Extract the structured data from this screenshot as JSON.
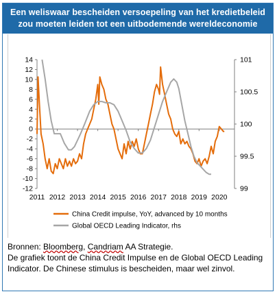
{
  "header": {
    "line1": "Een weliswaar bescheiden  versoepeling  van het kredietbeleid",
    "line2": "zou moeten leiden tot een uitbodemende  wereldeconomie"
  },
  "chart_data": {
    "type": "line",
    "x_ticks": [
      "2011",
      "2012",
      "2013",
      "2014",
      "2015",
      "2016",
      "2017",
      "2018",
      "2019",
      "2020"
    ],
    "y_left_ticks": [
      "14",
      "12",
      "10",
      "8",
      "6",
      "4",
      "2",
      "0",
      "-2",
      "-4",
      "-6",
      "-8",
      "-10",
      "-12"
    ],
    "y_right_ticks": [
      "101",
      "100.5",
      "100",
      "99.5",
      "99"
    ],
    "ylim_left": [
      -12,
      14
    ],
    "ylim_right": [
      99,
      101
    ],
    "xlim": [
      2011,
      2020.75
    ],
    "legend_position": "bottom",
    "series": [
      {
        "name": "China Credit impulse, YoY, advanced by 10 months",
        "axis": "left",
        "color": "#e46c0a",
        "points": [
          [
            2011.0,
            -1
          ],
          [
            2011.05,
            10.5
          ],
          [
            2011.12,
            5
          ],
          [
            2011.2,
            -1
          ],
          [
            2011.3,
            -3
          ],
          [
            2011.4,
            -6
          ],
          [
            2011.5,
            -8
          ],
          [
            2011.6,
            -6
          ],
          [
            2011.7,
            -8.5
          ],
          [
            2011.8,
            -9
          ],
          [
            2011.9,
            -7
          ],
          [
            2012.0,
            -8
          ],
          [
            2012.1,
            -6
          ],
          [
            2012.2,
            -7
          ],
          [
            2012.3,
            -8
          ],
          [
            2012.4,
            -6
          ],
          [
            2012.5,
            -7.5
          ],
          [
            2012.6,
            -6.5
          ],
          [
            2012.7,
            -7.5
          ],
          [
            2012.8,
            -6
          ],
          [
            2012.9,
            -7
          ],
          [
            2013.0,
            -6.5
          ],
          [
            2013.1,
            -5
          ],
          [
            2013.2,
            -6
          ],
          [
            2013.3,
            -3
          ],
          [
            2013.4,
            -1
          ],
          [
            2013.5,
            0
          ],
          [
            2013.6,
            1
          ],
          [
            2013.7,
            2
          ],
          [
            2013.8,
            4
          ],
          [
            2013.9,
            6
          ],
          [
            2014.0,
            9
          ],
          [
            2014.05,
            5
          ],
          [
            2014.1,
            10.5
          ],
          [
            2014.2,
            9
          ],
          [
            2014.3,
            8
          ],
          [
            2014.4,
            6
          ],
          [
            2014.5,
            5
          ],
          [
            2014.6,
            3
          ],
          [
            2014.7,
            1
          ],
          [
            2014.8,
            0
          ],
          [
            2014.9,
            -2
          ],
          [
            2015.0,
            -4
          ],
          [
            2015.1,
            -5
          ],
          [
            2015.2,
            -6
          ],
          [
            2015.3,
            -3
          ],
          [
            2015.4,
            -5
          ],
          [
            2015.5,
            -2.5
          ],
          [
            2015.6,
            -4
          ],
          [
            2015.7,
            -2.5
          ],
          [
            2015.8,
            -3.5
          ],
          [
            2015.9,
            -2
          ],
          [
            2016.0,
            -4
          ],
          [
            2016.1,
            -5
          ],
          [
            2016.2,
            -5
          ],
          [
            2016.3,
            -3
          ],
          [
            2016.4,
            -1
          ],
          [
            2016.5,
            1
          ],
          [
            2016.6,
            3
          ],
          [
            2016.7,
            5
          ],
          [
            2016.8,
            7.5
          ],
          [
            2016.9,
            9
          ],
          [
            2017.0,
            8
          ],
          [
            2017.05,
            7
          ],
          [
            2017.1,
            12.5
          ],
          [
            2017.2,
            9
          ],
          [
            2017.3,
            7
          ],
          [
            2017.4,
            5
          ],
          [
            2017.5,
            3
          ],
          [
            2017.6,
            2
          ],
          [
            2017.7,
            0
          ],
          [
            2017.8,
            -1
          ],
          [
            2017.9,
            -1.5
          ],
          [
            2018.0,
            -0.5
          ],
          [
            2018.1,
            -3
          ],
          [
            2018.2,
            -2
          ],
          [
            2018.3,
            -3
          ],
          [
            2018.4,
            -2.5
          ],
          [
            2018.5,
            -3.5
          ],
          [
            2018.6,
            -4
          ],
          [
            2018.7,
            -5
          ],
          [
            2018.8,
            -6.5
          ],
          [
            2018.9,
            -7
          ],
          [
            2019.0,
            -6
          ],
          [
            2019.1,
            -7.5
          ],
          [
            2019.2,
            -6.5
          ],
          [
            2019.3,
            -6
          ],
          [
            2019.4,
            -7
          ],
          [
            2019.5,
            -5.5
          ],
          [
            2019.6,
            -3.5
          ],
          [
            2019.7,
            -5
          ],
          [
            2019.8,
            -2.5
          ],
          [
            2019.9,
            -1.5
          ],
          [
            2020.0,
            0.5
          ],
          [
            2020.1,
            0
          ],
          [
            2020.2,
            -0.5
          ],
          [
            2020.25,
            -0.5
          ]
        ]
      },
      {
        "name": "Global OECD Leading Indicator, rhs",
        "axis": "right",
        "color": "#a6a6a6",
        "points": [
          [
            2011.25,
            101
          ],
          [
            2011.4,
            100.7
          ],
          [
            2011.55,
            100.35
          ],
          [
            2011.7,
            100.05
          ],
          [
            2011.85,
            99.85
          ],
          [
            2012.0,
            99.85
          ],
          [
            2012.15,
            99.85
          ],
          [
            2012.35,
            99.7
          ],
          [
            2012.55,
            99.6
          ],
          [
            2012.7,
            99.6
          ],
          [
            2012.85,
            99.65
          ],
          [
            2013.0,
            99.75
          ],
          [
            2013.15,
            99.85
          ],
          [
            2013.35,
            100.0
          ],
          [
            2013.6,
            100.2
          ],
          [
            2013.8,
            100.3
          ],
          [
            2014.0,
            100.35
          ],
          [
            2014.2,
            100.35
          ],
          [
            2014.4,
            100.33
          ],
          [
            2014.6,
            100.33
          ],
          [
            2014.8,
            100.3
          ],
          [
            2015.0,
            100.2
          ],
          [
            2015.2,
            100.05
          ],
          [
            2015.4,
            99.9
          ],
          [
            2015.6,
            99.72
          ],
          [
            2015.8,
            99.62
          ],
          [
            2016.0,
            99.55
          ],
          [
            2016.2,
            99.55
          ],
          [
            2016.4,
            99.62
          ],
          [
            2016.6,
            99.75
          ],
          [
            2016.8,
            99.95
          ],
          [
            2017.0,
            100.15
          ],
          [
            2017.2,
            100.35
          ],
          [
            2017.4,
            100.5
          ],
          [
            2017.6,
            100.65
          ],
          [
            2017.75,
            100.7
          ],
          [
            2017.9,
            100.65
          ],
          [
            2018.0,
            100.55
          ],
          [
            2018.15,
            100.3
          ],
          [
            2018.3,
            100.05
          ],
          [
            2018.45,
            99.85
          ],
          [
            2018.6,
            99.65
          ],
          [
            2018.75,
            99.5
          ],
          [
            2018.9,
            99.4
          ],
          [
            2019.05,
            99.35
          ],
          [
            2019.2,
            99.3
          ],
          [
            2019.35,
            99.25
          ],
          [
            2019.5,
            99.22
          ],
          [
            2019.6,
            99.22
          ]
        ]
      }
    ]
  },
  "notes": {
    "source_prefix": "Bronnen: ",
    "source_a": "Bloomberg",
    "source_sep": ", ",
    "source_b": "Candriam",
    "source_suffix": " AA Strategie.",
    "description": "De grafiek toont de China Credit Impulse en de Global OECD Leading Indicator. De Chinese stimulus is bescheiden, maar wel zinvol."
  }
}
